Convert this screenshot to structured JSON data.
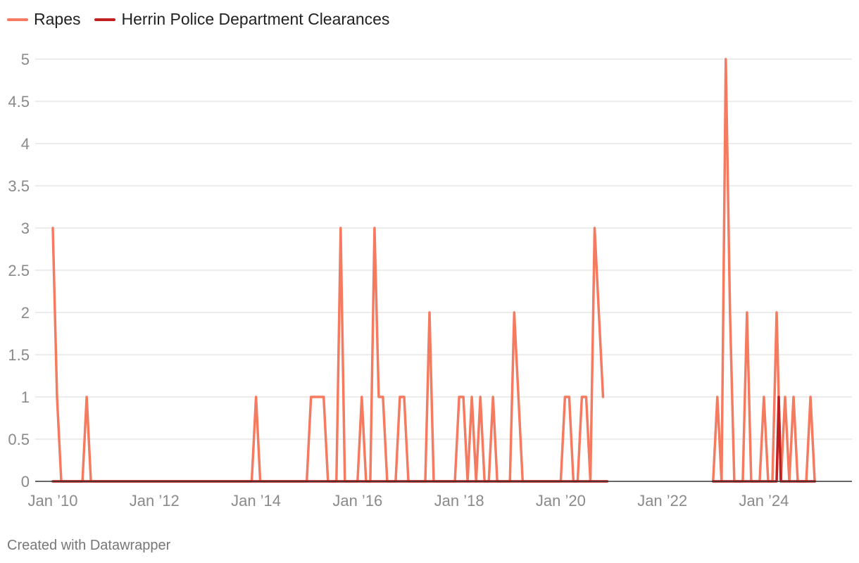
{
  "colors": {
    "rapes": "#f47a60",
    "clearances": "#c01f1f",
    "grid": "#d9d9d9",
    "axis": "#333333",
    "tick_text": "#8a8a8a"
  },
  "footer": "Created with Datawrapper",
  "chart_data": {
    "type": "line",
    "title": "",
    "xlabel": "",
    "ylabel": "",
    "x_ticks": [
      {
        "year": 2010,
        "label": "Jan ’10"
      },
      {
        "year": 2012,
        "label": "Jan ’12"
      },
      {
        "year": 2014,
        "label": "Jan ’14"
      },
      {
        "year": 2016,
        "label": "Jan ’16"
      },
      {
        "year": 2018,
        "label": "Jan ’18"
      },
      {
        "year": 2020,
        "label": "Jan ’20"
      },
      {
        "year": 2022,
        "label": "Jan ’22"
      },
      {
        "year": 2024,
        "label": "Jan ’24"
      }
    ],
    "y_ticks": [
      "0",
      "0.5",
      "1",
      "1.5",
      "2",
      "2.5",
      "3",
      "3.5",
      "4",
      "4.5",
      "5"
    ],
    "ylim": [
      0,
      5
    ],
    "xlim": [
      "2010-01",
      "2024-12"
    ],
    "grid": true,
    "legend_position": "top-left",
    "series": [
      {
        "name": "Rapes",
        "color_key": "rapes",
        "segments": [
          [
            [
              "2010-01",
              3
            ],
            [
              "2010-02",
              1
            ],
            [
              "2010-03",
              0
            ],
            [
              "2010-04",
              0
            ],
            [
              "2010-05",
              0
            ],
            [
              "2010-06",
              0
            ],
            [
              "2010-07",
              0
            ],
            [
              "2010-08",
              0
            ],
            [
              "2010-09",
              1
            ],
            [
              "2010-10",
              0
            ],
            [
              "2010-11",
              0
            ],
            [
              "2010-12",
              0
            ],
            [
              "2011-01",
              0
            ],
            [
              "2011-02",
              0
            ],
            [
              "2011-03",
              0
            ],
            [
              "2011-04",
              0
            ],
            [
              "2011-05",
              0
            ],
            [
              "2011-06",
              0
            ],
            [
              "2011-07",
              0
            ],
            [
              "2011-08",
              0
            ],
            [
              "2011-09",
              0
            ],
            [
              "2011-10",
              0
            ],
            [
              "2011-11",
              0
            ],
            [
              "2011-12",
              0
            ],
            [
              "2012-01",
              0
            ],
            [
              "2012-02",
              0
            ],
            [
              "2012-03",
              0
            ],
            [
              "2012-04",
              0
            ],
            [
              "2012-05",
              0
            ],
            [
              "2012-06",
              0
            ],
            [
              "2012-07",
              0
            ],
            [
              "2012-08",
              0
            ],
            [
              "2012-09",
              0
            ],
            [
              "2012-10",
              0
            ],
            [
              "2012-11",
              0
            ],
            [
              "2012-12",
              0
            ],
            [
              "2013-01",
              0
            ],
            [
              "2013-02",
              0
            ],
            [
              "2013-03",
              0
            ],
            [
              "2013-04",
              0
            ],
            [
              "2013-05",
              0
            ],
            [
              "2013-06",
              0
            ],
            [
              "2013-07",
              0
            ],
            [
              "2013-08",
              0
            ],
            [
              "2013-09",
              0
            ],
            [
              "2013-10",
              0
            ],
            [
              "2013-11",
              0
            ],
            [
              "2013-12",
              0
            ],
            [
              "2014-01",
              1
            ],
            [
              "2014-02",
              0
            ],
            [
              "2014-03",
              0
            ],
            [
              "2014-04",
              0
            ],
            [
              "2014-05",
              0
            ],
            [
              "2014-06",
              0
            ],
            [
              "2014-07",
              0
            ],
            [
              "2014-08",
              0
            ],
            [
              "2014-09",
              0
            ],
            [
              "2014-10",
              0
            ],
            [
              "2014-11",
              0
            ],
            [
              "2014-12",
              0
            ],
            [
              "2015-01",
              0
            ],
            [
              "2015-02",
              1
            ],
            [
              "2015-03",
              1
            ],
            [
              "2015-04",
              1
            ],
            [
              "2015-05",
              1
            ],
            [
              "2015-06",
              0
            ],
            [
              "2015-07",
              0
            ],
            [
              "2015-08",
              0
            ],
            [
              "2015-09",
              3
            ],
            [
              "2015-10",
              0
            ],
            [
              "2015-11",
              0
            ],
            [
              "2015-12",
              0
            ],
            [
              "2016-01",
              0
            ],
            [
              "2016-02",
              1
            ],
            [
              "2016-03",
              0
            ],
            [
              "2016-04",
              0
            ],
            [
              "2016-05",
              3
            ],
            [
              "2016-06",
              1
            ],
            [
              "2016-07",
              1
            ],
            [
              "2016-08",
              0
            ],
            [
              "2016-09",
              0
            ],
            [
              "2016-10",
              0
            ],
            [
              "2016-11",
              1
            ],
            [
              "2016-12",
              1
            ],
            [
              "2017-01",
              0
            ],
            [
              "2017-02",
              0
            ],
            [
              "2017-03",
              0
            ],
            [
              "2017-04",
              0
            ],
            [
              "2017-05",
              0
            ],
            [
              "2017-06",
              2
            ],
            [
              "2017-07",
              0
            ],
            [
              "2017-08",
              0
            ],
            [
              "2017-09",
              0
            ],
            [
              "2017-10",
              0
            ],
            [
              "2017-11",
              0
            ],
            [
              "2017-12",
              0
            ],
            [
              "2018-01",
              1
            ],
            [
              "2018-02",
              1
            ],
            [
              "2018-03",
              0
            ],
            [
              "2018-04",
              1
            ],
            [
              "2018-05",
              0
            ],
            [
              "2018-06",
              1
            ],
            [
              "2018-07",
              0
            ],
            [
              "2018-08",
              0
            ],
            [
              "2018-09",
              1
            ],
            [
              "2018-10",
              0
            ],
            [
              "2018-11",
              0
            ],
            [
              "2018-12",
              0
            ],
            [
              "2019-01",
              0
            ],
            [
              "2019-02",
              2
            ],
            [
              "2019-03",
              1
            ],
            [
              "2019-04",
              0
            ],
            [
              "2019-05",
              0
            ],
            [
              "2019-06",
              0
            ],
            [
              "2019-07",
              0
            ],
            [
              "2019-08",
              0
            ],
            [
              "2019-09",
              0
            ],
            [
              "2019-10",
              0
            ],
            [
              "2019-11",
              0
            ],
            [
              "2019-12",
              0
            ],
            [
              "2020-01",
              0
            ],
            [
              "2020-02",
              1
            ],
            [
              "2020-03",
              1
            ],
            [
              "2020-04",
              0
            ],
            [
              "2020-05",
              0
            ],
            [
              "2020-06",
              1
            ],
            [
              "2020-07",
              1
            ],
            [
              "2020-08",
              0
            ],
            [
              "2020-09",
              3
            ],
            [
              "2020-10",
              2
            ],
            [
              "2020-11",
              1
            ]
          ],
          [
            [
              "2023-01",
              0
            ],
            [
              "2023-02",
              1
            ],
            [
              "2023-03",
              0
            ],
            [
              "2023-04",
              5
            ],
            [
              "2023-05",
              2
            ],
            [
              "2023-06",
              0
            ],
            [
              "2023-07",
              0
            ],
            [
              "2023-08",
              0
            ],
            [
              "2023-09",
              2
            ],
            [
              "2023-10",
              0
            ],
            [
              "2023-11",
              0
            ],
            [
              "2023-12",
              0
            ],
            [
              "2024-01",
              1
            ],
            [
              "2024-02",
              0
            ],
            [
              "2024-03",
              0
            ],
            [
              "2024-04",
              2
            ],
            [
              "2024-05",
              0
            ],
            [
              "2024-06",
              1
            ],
            [
              "2024-07",
              0
            ],
            [
              "2024-08",
              1
            ],
            [
              "2024-09",
              0
            ],
            [
              "2024-10",
              0
            ],
            [
              "2024-11",
              0
            ],
            [
              "2024-12",
              1
            ],
            [
              "2025-01",
              0
            ]
          ]
        ]
      },
      {
        "name": "Herrin Police Department Clearances",
        "color_key": "clearances",
        "segments": [
          [
            [
              "2010-01",
              0
            ],
            [
              "2020-12",
              0
            ]
          ],
          [
            [
              "2023-01",
              0
            ],
            [
              "2024-04",
              0
            ],
            [
              "2024-04.5",
              1
            ],
            [
              "2024-05",
              0
            ],
            [
              "2025-01",
              0
            ]
          ]
        ]
      }
    ]
  }
}
